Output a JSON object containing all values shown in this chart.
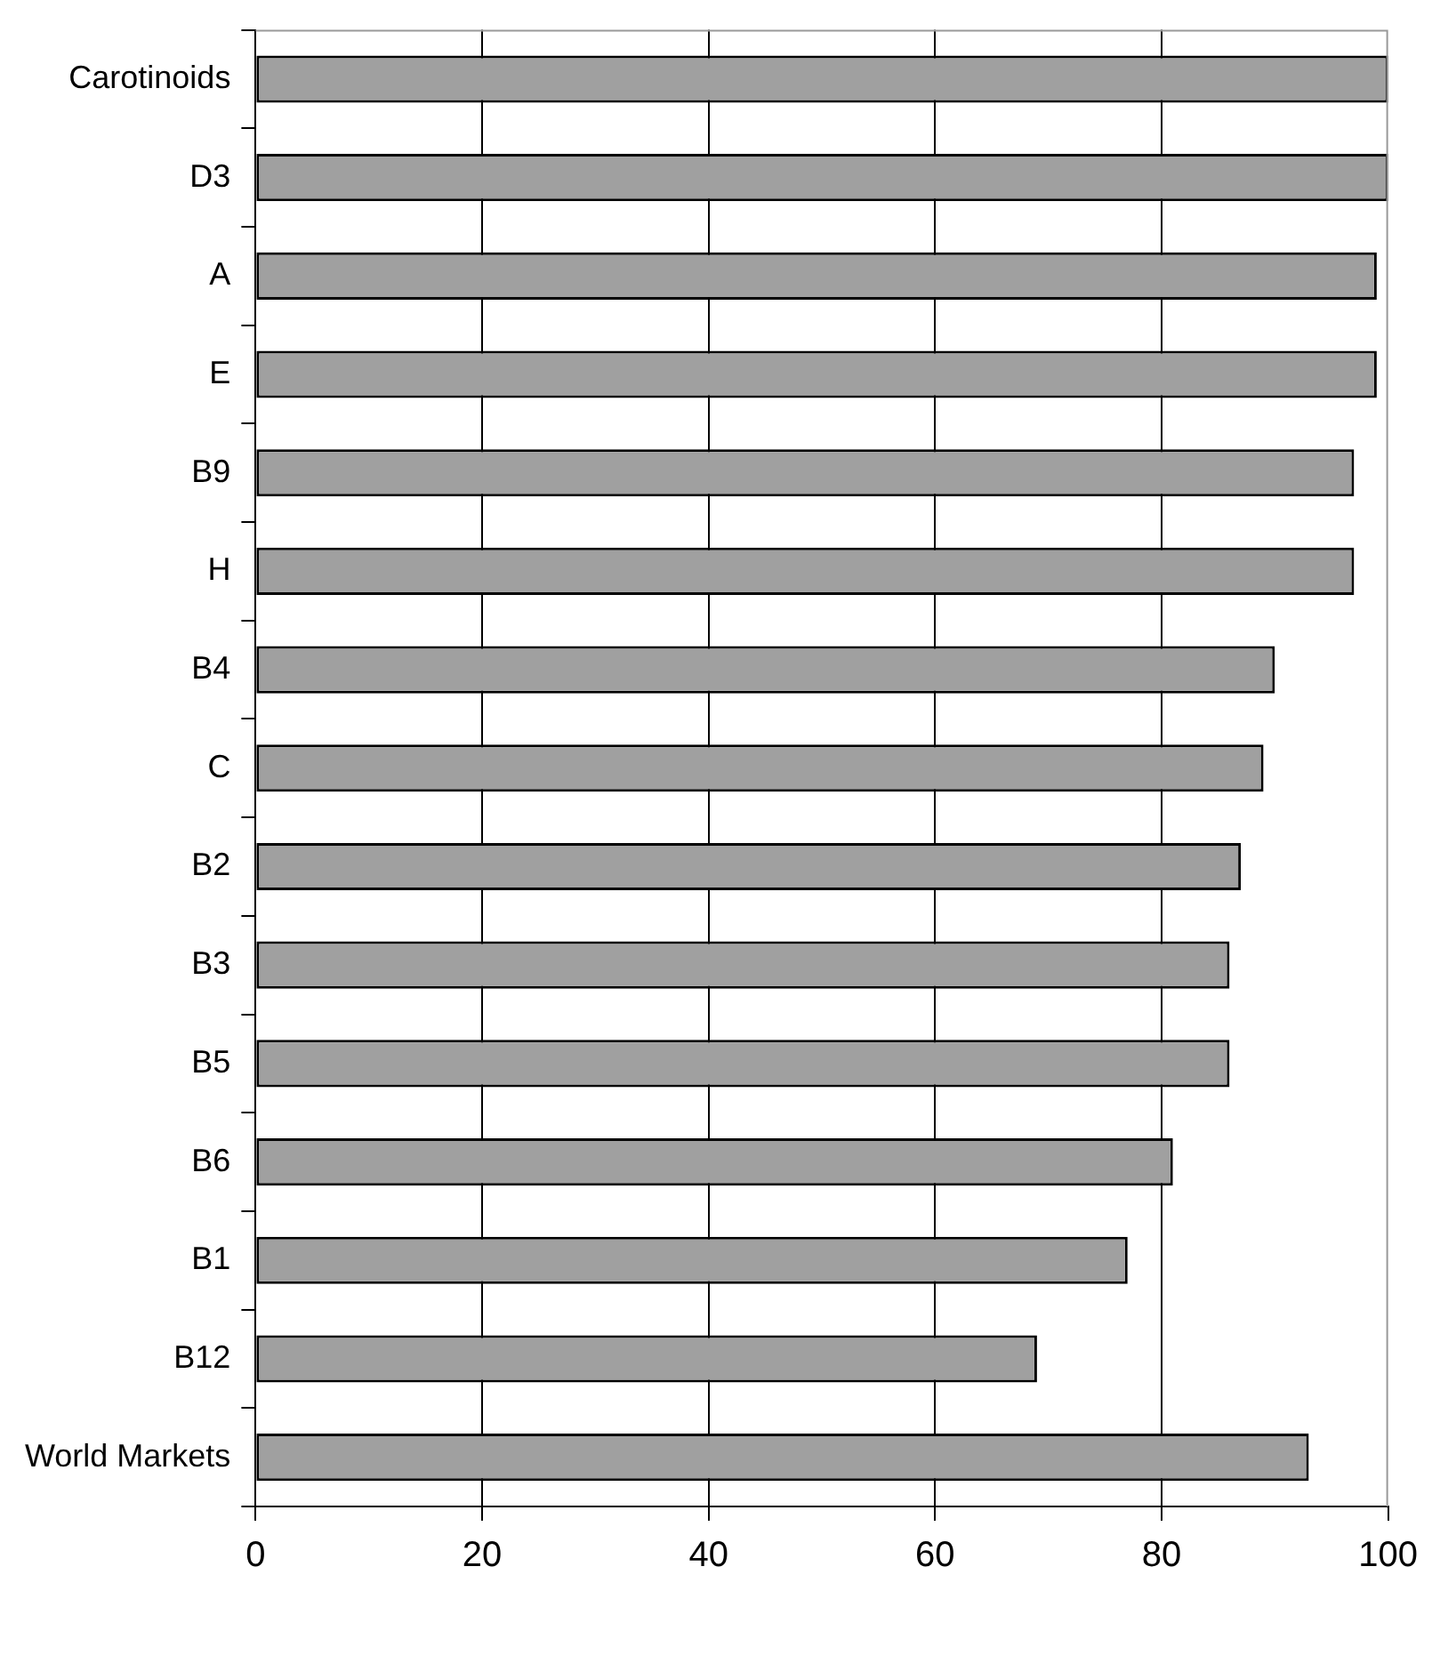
{
  "chart_data": {
    "type": "bar",
    "orientation": "horizontal",
    "categories": [
      "Carotinoids",
      "D3",
      "A",
      "E",
      "B9",
      "H",
      "B4",
      "C",
      "B2",
      "B3",
      "B5",
      "B6",
      "B1",
      "B12",
      "World Markets"
    ],
    "values": [
      100,
      100,
      99,
      99,
      97,
      97,
      90,
      89,
      87,
      86,
      86,
      81,
      77,
      69,
      93
    ],
    "color": "#a0a0a0",
    "xlim": [
      0,
      100
    ],
    "xticks": [
      0,
      20,
      40,
      60,
      80,
      100
    ],
    "grid": "x",
    "legend": false
  }
}
